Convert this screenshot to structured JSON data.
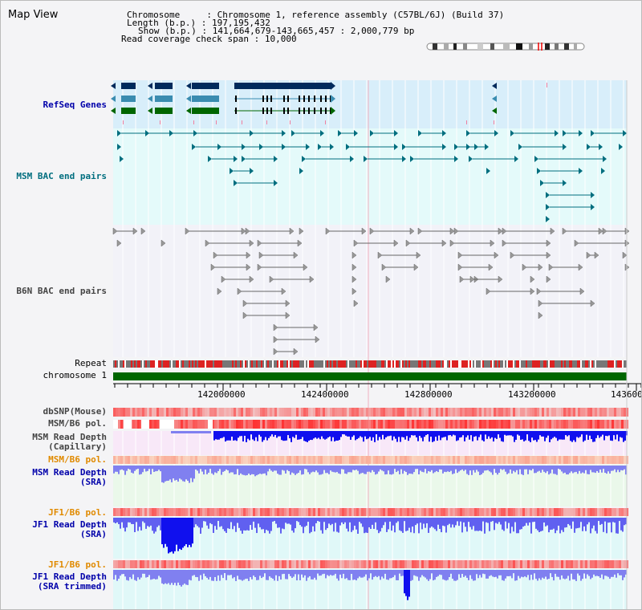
{
  "window": {
    "title": "Map View"
  },
  "info": {
    "chromosome_key": "Chromosome",
    "chromosome_value": "Chromosome 1, reference assembly (C57BL/6J) (Build 37)",
    "length_key": "Length (b.p.)",
    "length_value": "197,195,432",
    "show_key": "Show (b.p.)",
    "show_value": "141,664,679-143,665,457 : 2,000,779 bp",
    "coverage_key": "Read coverage check span",
    "coverage_value": "10,000"
  },
  "tracks": {
    "refseq": "RefSeq Genes",
    "msm_bac": "MSM BAC end pairs",
    "b6n_bac": "B6N BAC end pairs",
    "repeat": "Repeat",
    "chromosome": "chromosome 1",
    "dbsnp": "dbSNP(Mouse)",
    "msm_pol": "MSM/B6 pol.",
    "msm_depth_cap": [
      "MSM Read Depth",
      "(Capillary)"
    ],
    "msm_pol2": "MSM/B6 pol.",
    "msm_depth_sra": [
      "MSM Read Depth",
      "(SRA)"
    ],
    "jf1_pol": "JF1/B6 pol.",
    "jf1_depth_sra": [
      "JF1 Read Depth",
      "(SRA)"
    ],
    "jf1_pol2": "JF1/B6 pol.",
    "jf1_depth_trim": [
      "JF1 Read Depth",
      "(SRA trimmed)"
    ]
  },
  "axis": {
    "ticks": [
      "142000000",
      "142400000",
      "142800000",
      "143200000",
      "143600"
    ]
  },
  "colors": {
    "refseq_dark": "#002a5c",
    "refseq_mid": "#3a8cb0",
    "refseq_green": "#006600",
    "refseq_bg": "#d8eefa",
    "msm_bac_bg": "#e4fafa",
    "msm_bac_line": "#006e7f",
    "b6n_bg": "#f2f2f8",
    "b6n_line": "#666666",
    "repeat_red": "#dd2222",
    "repeat_grey": "#777777",
    "chromosome_green": "#006600",
    "depth_blue": "#1010ee",
    "depth_light": "#8080f0",
    "pol_red": "#ee3030",
    "pol_pink": "#f8c8c8",
    "depth_bg_pink": "#f8e8f8",
    "depth_bg_green": "#eaf8ea",
    "depth_bg_cyan": "#e0f8f8"
  }
}
